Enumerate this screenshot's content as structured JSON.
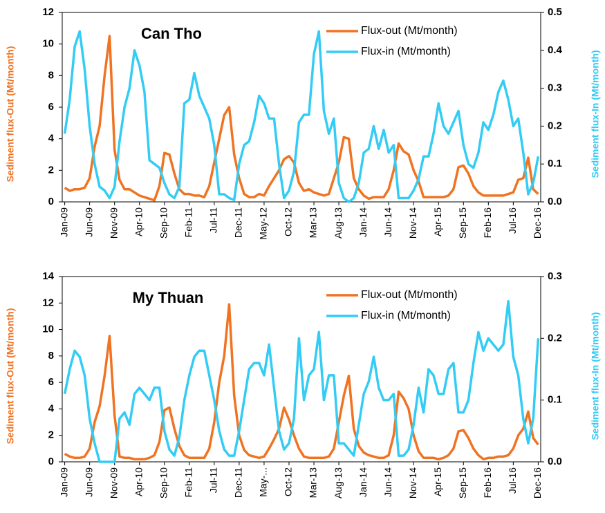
{
  "chart_data": [
    {
      "type": "line",
      "title": "Can Tho",
      "ylabel": "Sediment flux-Out (Mt/month)",
      "y2label": "Sediment flux-In (Mt/month)",
      "categories": [
        "Jan-09",
        null,
        null,
        null,
        null,
        "Jun-09",
        null,
        null,
        null,
        null,
        "Nov-09",
        null,
        null,
        null,
        null,
        "Apr-10",
        null,
        null,
        null,
        null,
        "Sep-10",
        null,
        null,
        null,
        null,
        "Feb-11",
        null,
        null,
        null,
        null,
        "Jul-11",
        null,
        null,
        null,
        null,
        "Dec-11",
        null,
        null,
        null,
        null,
        "May-12",
        null,
        null,
        null,
        null,
        "Oct-12",
        null,
        null,
        null,
        null,
        "Mar-13",
        null,
        null,
        null,
        null,
        "Aug-13",
        null,
        null,
        null,
        null,
        "Jan-14",
        null,
        null,
        null,
        null,
        "Jun-14",
        null,
        null,
        null,
        null,
        "Nov-14",
        null,
        null,
        null,
        null,
        "Apr-15",
        null,
        null,
        null,
        null,
        "Sep-15",
        null,
        null,
        null,
        null,
        "Feb-16",
        null,
        null,
        null,
        null,
        "Jul-16",
        null,
        null,
        null,
        null,
        "Dec-16"
      ],
      "series": [
        {
          "name": "Flux-out (Mt/month)",
          "color": "#f07322",
          "values": [
            0.9,
            0.7,
            0.8,
            0.8,
            0.9,
            1.5,
            3.5,
            4.8,
            8.0,
            10.5,
            3.3,
            1.4,
            0.8,
            0.8,
            0.6,
            0.4,
            0.3,
            0.2,
            0.1,
            1.0,
            3.1,
            3.0,
            1.8,
            0.8,
            0.5,
            0.5,
            0.4,
            0.4,
            0.3,
            1.0,
            2.5,
            4.0,
            5.5,
            6.0,
            3.0,
            1.5,
            0.5,
            0.3,
            0.3,
            0.5,
            0.4,
            1.0,
            1.5,
            2.0,
            2.7,
            2.9,
            2.5,
            1.2,
            0.7,
            0.8,
            0.6,
            0.5,
            0.4,
            0.5,
            1.5,
            2.5,
            4.1,
            4.0,
            1.5,
            0.8,
            0.4,
            0.2,
            0.3,
            0.3,
            0.3,
            0.8,
            2.0,
            3.7,
            3.2,
            3.0,
            2.0,
            1.3,
            0.3,
            0.3,
            0.3,
            0.3,
            0.3,
            0.4,
            0.8,
            2.2,
            2.3,
            1.8,
            1.0,
            0.6,
            0.4,
            0.4,
            0.4,
            0.4,
            0.4,
            0.5,
            0.6,
            1.4,
            1.5,
            2.8,
            0.8,
            0.5
          ]
        },
        {
          "name": "Flux-in (Mt/month)",
          "color": "#33ccf5",
          "axis": "y2",
          "values": [
            0.18,
            0.27,
            0.41,
            0.45,
            0.35,
            0.2,
            0.1,
            0.04,
            0.03,
            0.01,
            0.04,
            0.16,
            0.25,
            0.3,
            0.4,
            0.36,
            0.29,
            0.11,
            0.1,
            0.09,
            0.05,
            0.02,
            0.01,
            0.04,
            0.26,
            0.27,
            0.34,
            0.28,
            0.25,
            0.22,
            0.15,
            0.02,
            0.02,
            0.01,
            0.005,
            0.1,
            0.15,
            0.16,
            0.21,
            0.28,
            0.26,
            0.22,
            0.22,
            0.1,
            0.01,
            0.03,
            0.08,
            0.21,
            0.23,
            0.23,
            0.39,
            0.45,
            0.24,
            0.18,
            0.22,
            0.05,
            0.01,
            0.0,
            0.01,
            0.05,
            0.13,
            0.14,
            0.2,
            0.14,
            0.19,
            0.13,
            0.15,
            0.01,
            0.01,
            0.01,
            0.03,
            0.06,
            0.12,
            0.12,
            0.18,
            0.26,
            0.2,
            0.18,
            0.21,
            0.24,
            0.15,
            0.1,
            0.09,
            0.13,
            0.21,
            0.19,
            0.23,
            0.29,
            0.32,
            0.27,
            0.2,
            0.22,
            0.13,
            0.02,
            0.05,
            0.12
          ]
        }
      ],
      "ylim": [
        0,
        12
      ],
      "yticks": [
        0,
        2,
        4,
        6,
        8,
        10,
        12
      ],
      "y2lim": [
        0,
        0.5
      ],
      "y2ticks": [
        {
          "value": 0,
          "label": "0.0"
        },
        0.1,
        0.2,
        0.3,
        0.4,
        0.5
      ],
      "legend": "upper right"
    },
    {
      "type": "line",
      "title": "My Thuan",
      "ylabel": "Sediment flux-Out (Mt/month)",
      "y2label": "Sediment flux-In (Mt/month)",
      "categories": [
        "Jan-09",
        null,
        null,
        null,
        null,
        "Jun-09",
        null,
        null,
        null,
        null,
        "Nov-09",
        null,
        null,
        null,
        null,
        "Apr-10",
        null,
        null,
        null,
        null,
        "Sep-10",
        null,
        null,
        null,
        null,
        "Feb-11",
        null,
        null,
        null,
        null,
        "Jul-11",
        null,
        null,
        null,
        null,
        "Dec-11",
        null,
        null,
        null,
        null,
        "May-...",
        null,
        null,
        null,
        null,
        "Oct-12",
        null,
        null,
        null,
        null,
        "Mar-13",
        null,
        null,
        null,
        null,
        "Aug-13",
        null,
        null,
        null,
        null,
        "Jan-14",
        null,
        null,
        null,
        null,
        "Jun-14",
        null,
        null,
        null,
        null,
        "Nov-14",
        null,
        null,
        null,
        null,
        "Apr-15",
        null,
        null,
        null,
        null,
        "Sep-15",
        null,
        null,
        null,
        null,
        "Feb-16",
        null,
        null,
        null,
        null,
        "Jul-16",
        null,
        null,
        null,
        null,
        "Dec-16"
      ],
      "series": [
        {
          "name": "Flux-out (Mt/month)",
          "color": "#f07322",
          "values": [
            0.6,
            0.4,
            0.3,
            0.3,
            0.4,
            1.0,
            3.0,
            4.2,
            6.5,
            9.5,
            3.5,
            0.4,
            0.3,
            0.3,
            0.2,
            0.2,
            0.2,
            0.3,
            0.5,
            1.5,
            3.9,
            4.1,
            2.5,
            1.2,
            0.5,
            0.3,
            0.3,
            0.3,
            0.3,
            1.0,
            3.0,
            6.0,
            8.0,
            11.9,
            5.0,
            2.0,
            0.9,
            0.5,
            0.4,
            0.3,
            0.4,
            1.0,
            1.7,
            2.5,
            4.1,
            3.2,
            2.0,
            1.0,
            0.4,
            0.3,
            0.3,
            0.3,
            0.3,
            0.4,
            1.0,
            3.0,
            5.0,
            6.5,
            2.5,
            1.2,
            0.7,
            0.5,
            0.4,
            0.3,
            0.3,
            0.5,
            2.0,
            5.3,
            4.8,
            4.0,
            2.0,
            0.8,
            0.3,
            0.3,
            0.3,
            0.2,
            0.3,
            0.5,
            1.0,
            2.3,
            2.4,
            1.8,
            1.0,
            0.5,
            0.2,
            0.3,
            0.3,
            0.4,
            0.4,
            0.5,
            1.0,
            2.0,
            2.5,
            3.8,
            1.8,
            1.3
          ]
        },
        {
          "name": "Flux-in (Mt/month)",
          "color": "#33ccf5",
          "axis": "y2",
          "values": [
            0.11,
            0.15,
            0.18,
            0.17,
            0.14,
            0.07,
            0.03,
            0.0,
            0.0,
            0.0,
            0.0,
            0.07,
            0.08,
            0.06,
            0.11,
            0.12,
            0.11,
            0.1,
            0.12,
            0.12,
            0.05,
            0.02,
            0.01,
            0.04,
            0.1,
            0.14,
            0.17,
            0.18,
            0.18,
            0.14,
            0.1,
            0.05,
            0.02,
            0.01,
            0.01,
            0.05,
            0.1,
            0.15,
            0.16,
            0.16,
            0.14,
            0.19,
            0.12,
            0.05,
            0.02,
            0.03,
            0.07,
            0.2,
            0.1,
            0.14,
            0.15,
            0.21,
            0.1,
            0.14,
            0.14,
            0.03,
            0.03,
            0.02,
            0.01,
            0.06,
            0.11,
            0.13,
            0.17,
            0.12,
            0.1,
            0.1,
            0.11,
            0.01,
            0.01,
            0.02,
            0.06,
            0.12,
            0.08,
            0.15,
            0.14,
            0.11,
            0.11,
            0.15,
            0.16,
            0.08,
            0.08,
            0.1,
            0.16,
            0.21,
            0.18,
            0.2,
            0.19,
            0.18,
            0.19,
            0.26,
            0.17,
            0.14,
            0.07,
            0.03,
            0.07,
            0.2
          ]
        }
      ],
      "ylim": [
        0,
        14
      ],
      "yticks": [
        0,
        2,
        4,
        6,
        8,
        10,
        12,
        14
      ],
      "y2lim": [
        0,
        0.3
      ],
      "y2ticks": [
        {
          "value": 0,
          "label": "0.0"
        },
        0.1,
        0.2,
        0.3
      ],
      "legend": "upper right"
    }
  ]
}
